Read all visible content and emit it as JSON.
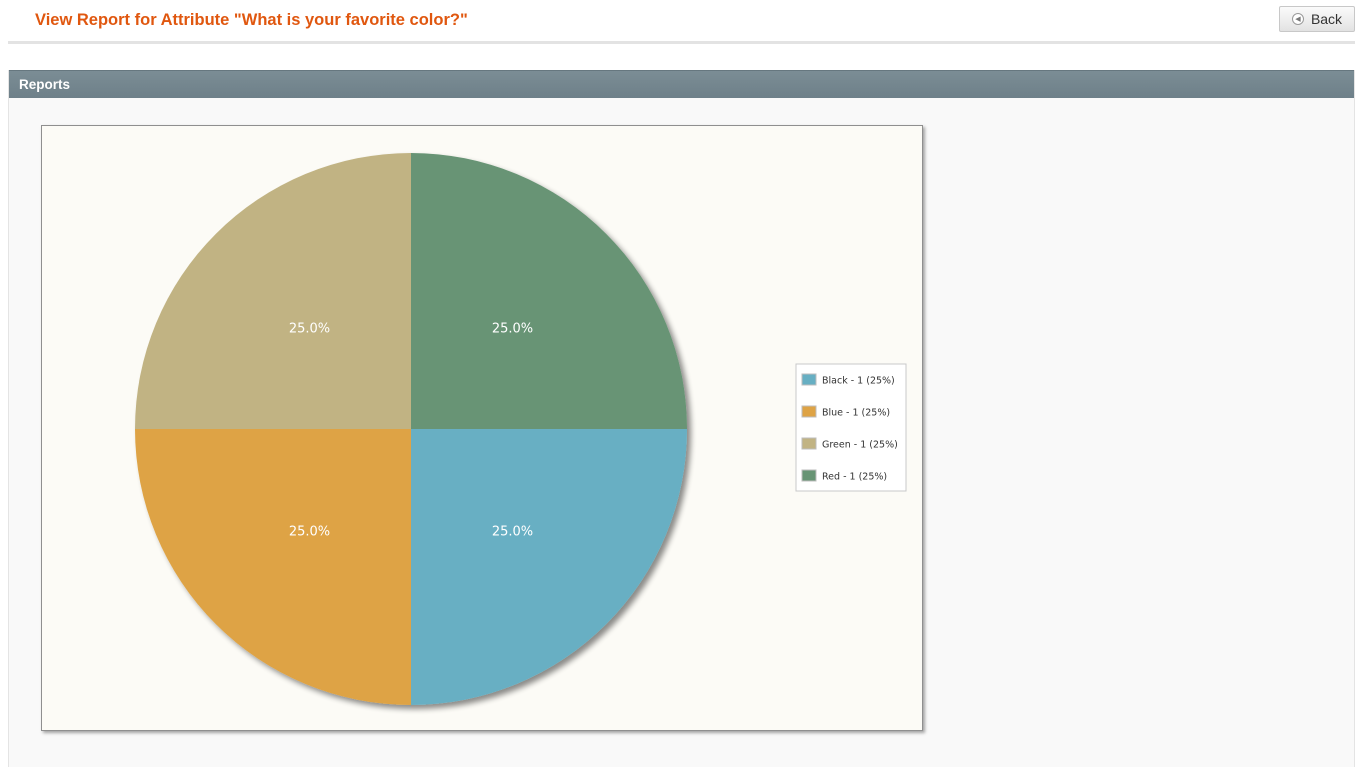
{
  "header": {
    "title": "View Report for Attribute \"What is your favorite color?\"",
    "back_label": "Back",
    "back_icon": "circle-arrow-left-icon"
  },
  "section": {
    "title": "Reports"
  },
  "chart_data": {
    "type": "pie",
    "categories": [
      "Black",
      "Blue",
      "Green",
      "Red"
    ],
    "values": [
      1,
      1,
      1,
      1
    ],
    "slice_labels": [
      "25.0%",
      "25.0%",
      "25.0%",
      "25.0%"
    ],
    "legend": [
      "Black - 1 (25%)",
      "Blue - 1 (25%)",
      "Green - 1 (25%)",
      "Red - 1 (25%)"
    ],
    "colors": [
      "#67afc3",
      "#dea345",
      "#c1b383",
      "#679474"
    ],
    "legend_position": "right"
  },
  "colors": {
    "title": "#e0570f",
    "section_bar": "#74868f",
    "chart_background": "#fcfbf6"
  }
}
